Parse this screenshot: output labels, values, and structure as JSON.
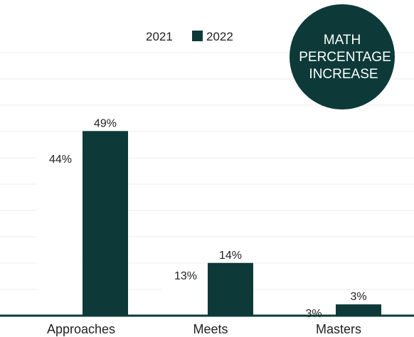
{
  "chart_data": {
    "type": "bar",
    "categories": [
      "Approaches",
      "Meets",
      "Masters"
    ],
    "series": [
      {
        "name": "2021",
        "values": [
          44,
          13,
          3
        ],
        "labels": [
          "44%",
          "13%",
          "3%"
        ],
        "color": "#ffffff"
      },
      {
        "name": "2022",
        "values": [
          49,
          14,
          3
        ],
        "labels": [
          "49%",
          "14%",
          "3%"
        ],
        "color": "#0d3a38"
      }
    ],
    "ylim": [
      0,
      55
    ],
    "grid": true,
    "legend_position": "top-center"
  },
  "badge": {
    "lines": [
      "MATH",
      "PERCENTAGE",
      "INCREASE"
    ],
    "color": "#0d3a38"
  }
}
